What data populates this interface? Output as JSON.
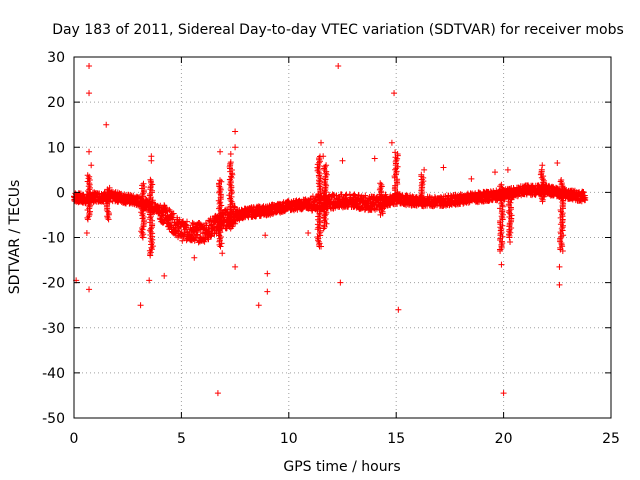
{
  "chart_data": {
    "type": "scatter",
    "title": "Day 183 of 2011, Sidereal Day-to-day VTEC variation (SDTVAR) for receiver mobs",
    "xlabel": "GPS time / hours",
    "ylabel": "SDTVAR / TECUs",
    "xlim": [
      0,
      25
    ],
    "ylim": [
      -50,
      30
    ],
    "xticks": [
      0,
      5,
      10,
      15,
      20,
      25
    ],
    "yticks": [
      -50,
      -40,
      -30,
      -20,
      -10,
      0,
      10,
      20,
      30
    ],
    "xtick_labels": [
      "0",
      "5",
      "10",
      "15",
      "20",
      "25"
    ],
    "ytick_labels": [
      "-50",
      "-40",
      "-30",
      "-20",
      "-10",
      "0",
      "10",
      "20",
      "30"
    ],
    "grid": true,
    "marker": "+",
    "marker_color": "#ff0000",
    "series": [
      {
        "name": "SDTVAR",
        "trend": [
          {
            "x": 0.0,
            "y": -1.0
          },
          {
            "x": 0.5,
            "y": -1.5
          },
          {
            "x": 1.0,
            "y": -1.0
          },
          {
            "x": 2.0,
            "y": -1.0
          },
          {
            "x": 3.0,
            "y": -2.0
          },
          {
            "x": 4.0,
            "y": -4.0
          },
          {
            "x": 5.0,
            "y": -8.5
          },
          {
            "x": 6.0,
            "y": -9.0
          },
          {
            "x": 7.0,
            "y": -6.0
          },
          {
            "x": 8.0,
            "y": -4.5
          },
          {
            "x": 9.0,
            "y": -4.0
          },
          {
            "x": 10.0,
            "y": -3.0
          },
          {
            "x": 11.0,
            "y": -2.5
          },
          {
            "x": 12.0,
            "y": -2.0
          },
          {
            "x": 13.0,
            "y": -2.0
          },
          {
            "x": 14.0,
            "y": -2.5
          },
          {
            "x": 15.0,
            "y": -1.5
          },
          {
            "x": 16.0,
            "y": -2.0
          },
          {
            "x": 17.0,
            "y": -2.0
          },
          {
            "x": 18.0,
            "y": -1.5
          },
          {
            "x": 19.0,
            "y": -1.0
          },
          {
            "x": 20.0,
            "y": -0.5
          },
          {
            "x": 21.0,
            "y": 0.5
          },
          {
            "x": 22.0,
            "y": 0.5
          },
          {
            "x": 23.0,
            "y": -0.5
          },
          {
            "x": 23.8,
            "y": -1.0
          }
        ],
        "outliers": [
          {
            "x": 0.1,
            "y": -19.5
          },
          {
            "x": 0.7,
            "y": 28.0
          },
          {
            "x": 0.7,
            "y": 22.0
          },
          {
            "x": 0.7,
            "y": -21.5
          },
          {
            "x": 0.7,
            "y": 9.0
          },
          {
            "x": 0.8,
            "y": 6.0
          },
          {
            "x": 0.6,
            "y": -9.0
          },
          {
            "x": 1.5,
            "y": 15.0
          },
          {
            "x": 3.1,
            "y": -25.0
          },
          {
            "x": 3.5,
            "y": -19.5
          },
          {
            "x": 3.6,
            "y": 8.0
          },
          {
            "x": 3.6,
            "y": 7.0
          },
          {
            "x": 4.2,
            "y": -18.5
          },
          {
            "x": 6.7,
            "y": -44.5
          },
          {
            "x": 6.8,
            "y": 9.0
          },
          {
            "x": 7.3,
            "y": 8.5
          },
          {
            "x": 7.5,
            "y": 13.5
          },
          {
            "x": 7.5,
            "y": 10.0
          },
          {
            "x": 7.5,
            "y": -16.5
          },
          {
            "x": 8.6,
            "y": -25.0
          },
          {
            "x": 9.0,
            "y": -22.0
          },
          {
            "x": 9.0,
            "y": -18.0
          },
          {
            "x": 11.5,
            "y": 11.0
          },
          {
            "x": 11.6,
            "y": 8.0
          },
          {
            "x": 11.5,
            "y": -12.0
          },
          {
            "x": 12.3,
            "y": 28.0
          },
          {
            "x": 12.4,
            "y": -20.0
          },
          {
            "x": 12.5,
            "y": 7.0
          },
          {
            "x": 14.8,
            "y": 11.0
          },
          {
            "x": 14.9,
            "y": 22.0
          },
          {
            "x": 15.1,
            "y": -26.0
          },
          {
            "x": 14.0,
            "y": 7.5
          },
          {
            "x": 16.3,
            "y": 5.0
          },
          {
            "x": 17.2,
            "y": 5.5
          },
          {
            "x": 19.6,
            "y": 4.5
          },
          {
            "x": 19.9,
            "y": -16.0
          },
          {
            "x": 20.0,
            "y": -44.5
          },
          {
            "x": 20.2,
            "y": 5.0
          },
          {
            "x": 20.3,
            "y": -11.0
          },
          {
            "x": 21.8,
            "y": 6.0
          },
          {
            "x": 22.5,
            "y": 6.5
          },
          {
            "x": 22.6,
            "y": -16.5
          },
          {
            "x": 22.6,
            "y": -20.5
          },
          {
            "x": 5.6,
            "y": -14.5
          },
          {
            "x": 6.9,
            "y": -13.5
          },
          {
            "x": 8.9,
            "y": -9.5
          },
          {
            "x": 10.9,
            "y": -9.0
          },
          {
            "x": 18.5,
            "y": 3.0
          }
        ]
      }
    ]
  }
}
